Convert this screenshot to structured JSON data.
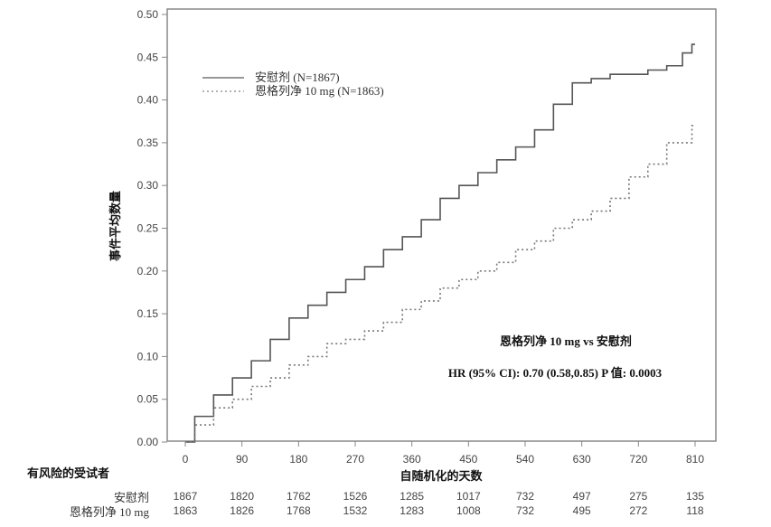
{
  "chart_data": {
    "type": "line",
    "title": "",
    "xlabel": "自随机化的天数",
    "ylabel": "事件平均数量",
    "xlim": [
      0,
      810
    ],
    "ylim": [
      0,
      0.5
    ],
    "x_ticks": [
      0,
      90,
      180,
      270,
      360,
      450,
      540,
      630,
      720,
      810
    ],
    "x_tick_labels": [
      "0",
      "90",
      "180",
      "270",
      "360",
      "450",
      "540",
      "630",
      "720",
      "810"
    ],
    "y_ticks": [
      0,
      0.05,
      0.1,
      0.15,
      0.2,
      0.25,
      0.3,
      0.35,
      0.4,
      0.45,
      0.5
    ],
    "y_tick_labels": [
      "0.00",
      "0.05",
      "0.10",
      "0.15",
      "0.20",
      "0.25",
      "0.30",
      "0.35",
      "0.40",
      "0.45",
      "0.50"
    ],
    "grid": false,
    "legend_position": "upper-left",
    "series": [
      {
        "name": "安慰剂 (N=1867)",
        "style": "solid",
        "color": "#555555",
        "x": [
          0,
          30,
          60,
          90,
          120,
          150,
          180,
          210,
          240,
          270,
          300,
          330,
          360,
          390,
          420,
          450,
          480,
          510,
          540,
          570,
          600,
          630,
          660,
          690,
          720,
          750,
          780,
          800,
          810
        ],
        "values": [
          0.0,
          0.03,
          0.055,
          0.075,
          0.095,
          0.12,
          0.145,
          0.16,
          0.175,
          0.19,
          0.205,
          0.225,
          0.24,
          0.26,
          0.285,
          0.3,
          0.315,
          0.33,
          0.345,
          0.365,
          0.395,
          0.42,
          0.425,
          0.43,
          0.43,
          0.435,
          0.44,
          0.455,
          0.465
        ]
      },
      {
        "name": "恩格列净 10 mg (N=1863)",
        "style": "dotted",
        "color": "#777777",
        "x": [
          0,
          30,
          60,
          90,
          120,
          150,
          180,
          210,
          240,
          270,
          300,
          330,
          360,
          390,
          420,
          450,
          480,
          510,
          540,
          570,
          600,
          630,
          660,
          690,
          720,
          750,
          780,
          800,
          810
        ],
        "values": [
          0.0,
          0.02,
          0.04,
          0.05,
          0.065,
          0.075,
          0.09,
          0.1,
          0.115,
          0.12,
          0.13,
          0.14,
          0.155,
          0.165,
          0.18,
          0.19,
          0.2,
          0.21,
          0.225,
          0.235,
          0.25,
          0.26,
          0.27,
          0.285,
          0.31,
          0.325,
          0.35,
          0.35,
          0.37
        ]
      }
    ],
    "annotations": [
      "恩格列净 10 mg vs  安慰剂",
      "HR (95% CI): 0.70 (0.58,0.85) P 值:   0.0003"
    ]
  },
  "legend": {
    "items": [
      {
        "label": "安慰剂  (N=1867)",
        "style": "solid"
      },
      {
        "label": "恩格列净  10 mg (N=1863)",
        "style": "dotted"
      }
    ]
  },
  "annotation": {
    "comparison": "恩格列净 10 mg vs  安慰剂",
    "hr_text": "HR (95% CI): 0.70 (0.58,0.85) P 值:    0.0003"
  },
  "axes": {
    "xlabel": "自随机化的天数",
    "ylabel": "事件平均数量"
  },
  "risk_table": {
    "header": "有风险的受试者",
    "rows": [
      {
        "label": "安慰剂",
        "values": [
          "1867",
          "1820",
          "1762",
          "1526",
          "1285",
          "1017",
          "732",
          "497",
          "275",
          "135"
        ]
      },
      {
        "label": "恩格列净 10 mg",
        "values": [
          "1863",
          "1826",
          "1768",
          "1532",
          "1283",
          "1008",
          "732",
          "495",
          "272",
          "118"
        ]
      }
    ]
  }
}
